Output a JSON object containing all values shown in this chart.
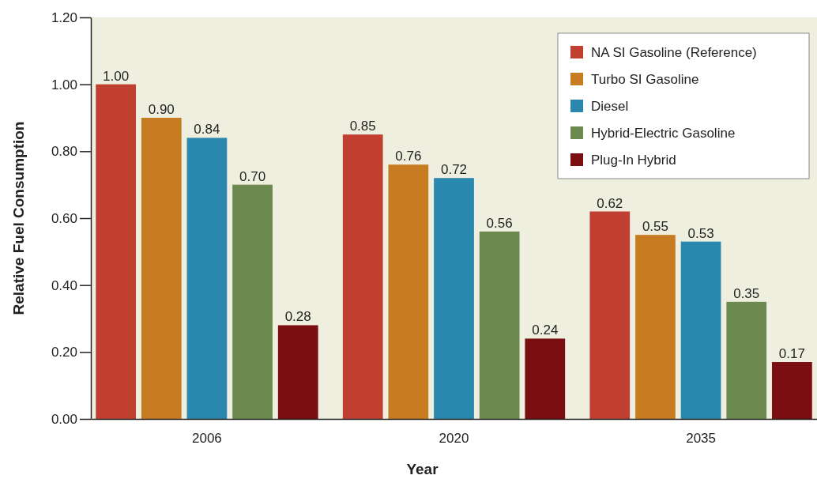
{
  "chart_data": {
    "type": "bar",
    "xlabel": "Year",
    "ylabel": "Relative Fuel Consumption",
    "categories": [
      "2006",
      "2020",
      "2035"
    ],
    "series": [
      {
        "name": "NA SI Gasoline (Reference)",
        "color": "#c13f30",
        "values": [
          1.0,
          0.85,
          0.62
        ],
        "value_labels": [
          "1.00",
          "0.85",
          "0.62"
        ]
      },
      {
        "name": "Turbo SI Gasoline",
        "color": "#c87c22",
        "values": [
          0.9,
          0.76,
          0.55
        ],
        "value_labels": [
          "0.90",
          "0.76",
          "0.55"
        ]
      },
      {
        "name": "Diesel",
        "color": "#2a87ae",
        "values": [
          0.84,
          0.72,
          0.53
        ],
        "value_labels": [
          "0.84",
          "0.72",
          "0.53"
        ]
      },
      {
        "name": "Hybrid-Electric Gasoline",
        "color": "#6c8a50",
        "values": [
          0.7,
          0.56,
          0.35
        ],
        "value_labels": [
          "0.70",
          "0.56",
          "0.35"
        ]
      },
      {
        "name": "Plug-In Hybrid",
        "color": "#7a0e10",
        "values": [
          0.28,
          0.24,
          0.17
        ],
        "value_labels": [
          "0.28",
          "0.24",
          "0.17"
        ]
      }
    ],
    "ylim": [
      0,
      1.2
    ],
    "yticks": [
      {
        "value": 0,
        "label": "0.00"
      },
      {
        "value": 0.2,
        "label": "0.20"
      },
      {
        "value": 0.4,
        "label": "0.40"
      },
      {
        "value": 0.6,
        "label": "0.60"
      },
      {
        "value": 0.8,
        "label": "0.80"
      },
      {
        "value": 1,
        "label": "1.00"
      },
      {
        "value": 1.2,
        "label": "1.20"
      }
    ],
    "grid": false,
    "legend": "top right"
  }
}
